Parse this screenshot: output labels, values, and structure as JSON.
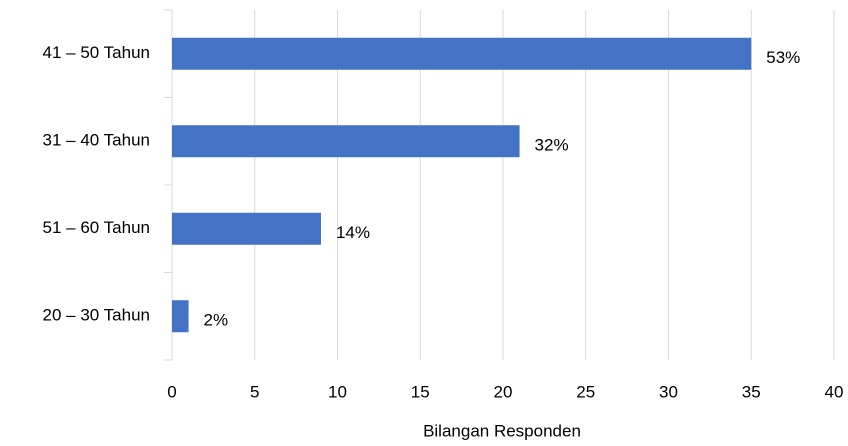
{
  "chart_data": {
    "type": "barh",
    "categories": [
      "41 – 50 Tahun",
      "31 – 40 Tahun",
      "51 – 60 Tahun",
      "20 – 30 Tahun"
    ],
    "values": [
      35,
      21,
      9,
      1
    ],
    "value_labels": [
      "53%",
      "32%",
      "14%",
      "2%"
    ],
    "color": "#4472c4",
    "xlabel": "Bilangan Responden",
    "xlim": [
      0,
      40
    ],
    "xticks": [
      0,
      5,
      10,
      15,
      20,
      25,
      30,
      35,
      40
    ],
    "grid": true
  }
}
